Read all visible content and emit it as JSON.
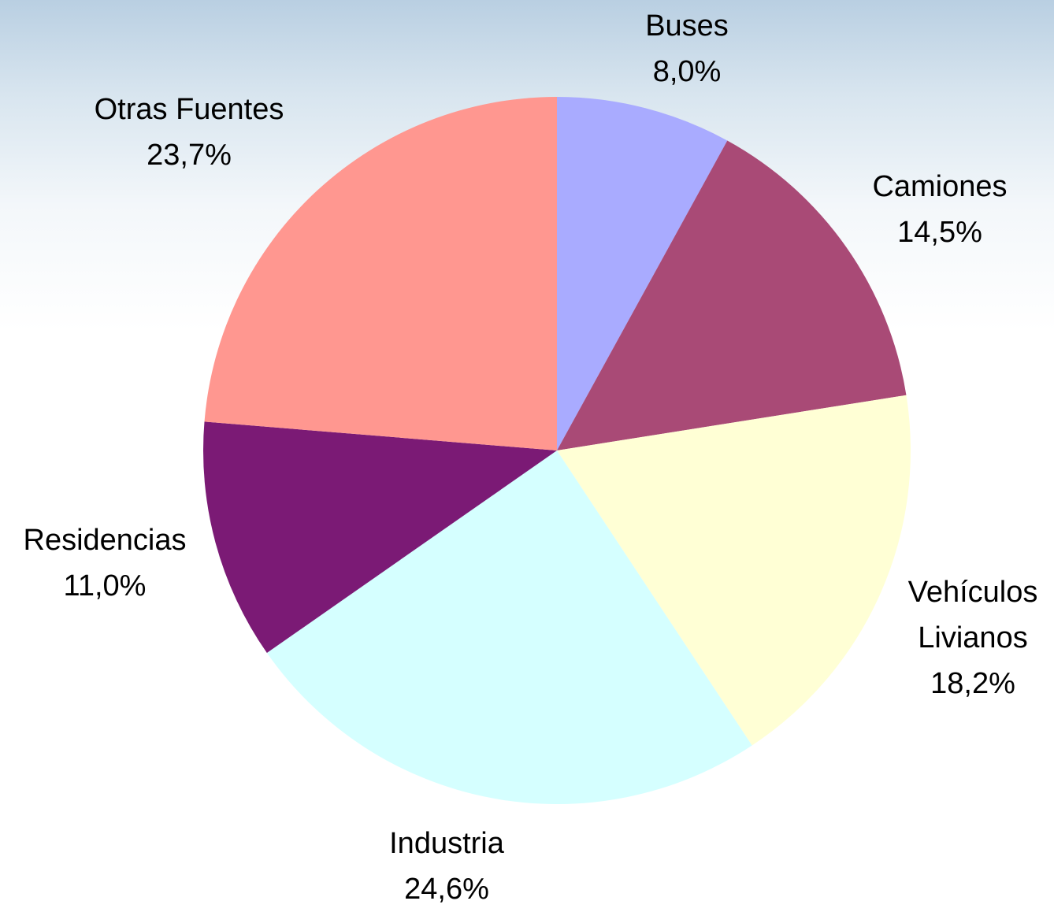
{
  "chart_data": {
    "type": "pie",
    "categories": [
      "Buses",
      "Camiones",
      "Vehículos Livianos",
      "Industria",
      "Residencias",
      "Otras Fuentes"
    ],
    "values": [
      8.0,
      14.5,
      18.2,
      24.6,
      11.0,
      23.7
    ],
    "value_labels": [
      "8,0%",
      "14,5%",
      "18,2%",
      "24,6%",
      "11,0%",
      "23,7%"
    ],
    "colors": [
      "#a9abff",
      "#a94a76",
      "#ffffd5",
      "#d5ffff",
      "#7b1a75",
      "#ff9790"
    ]
  }
}
